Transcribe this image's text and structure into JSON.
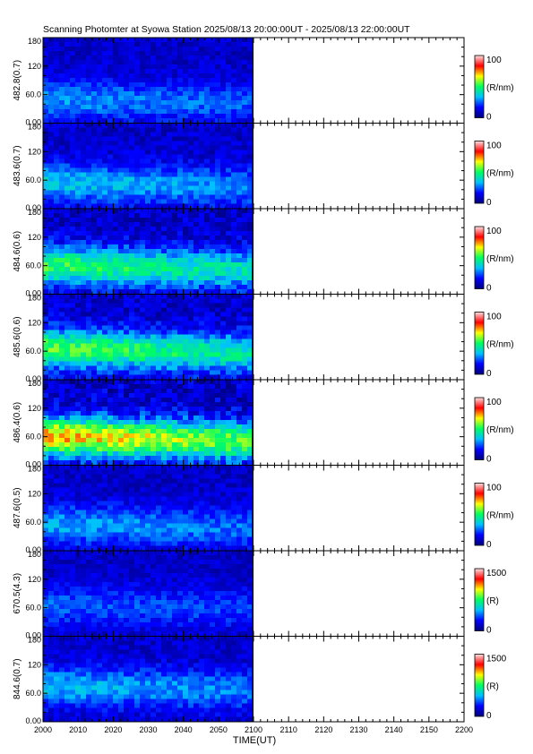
{
  "chart_data": {
    "type": "heatmap",
    "title": "Scanning Photomter at Syowa Station 2025/08/13 20:00:00UT - 2025/08/13 22:00:00UT",
    "xlabel": "TIME(UT)",
    "x_ticks": [
      "2000",
      "2010",
      "2020",
      "2030",
      "2040",
      "2050",
      "2100",
      "2110",
      "2120",
      "2130",
      "2140",
      "2150",
      "2200"
    ],
    "xlim": [
      "2000",
      "2200"
    ],
    "data_end": "2100",
    "ylim": [
      0,
      180
    ],
    "y_ticks": [
      "0.00",
      "60.0",
      "120",
      "180"
    ],
    "colormap": [
      "#00007a",
      "#0000ff",
      "#00c0ff",
      "#00ff60",
      "#ffff00",
      "#ff0000",
      "#ffe0e0"
    ],
    "panels": [
      {
        "ylabel": "482.8(0.7)",
        "unit": "(R/nm)",
        "cb_min": "0",
        "cb_max": "100",
        "peak_y": 45,
        "intensity": 0.2
      },
      {
        "ylabel": "483.6(0.7)",
        "unit": "(R/nm)",
        "cb_min": "0",
        "cb_max": "100",
        "peak_y": 50,
        "intensity": 0.26
      },
      {
        "ylabel": "484.6(0.6)",
        "unit": "(R/nm)",
        "cb_min": "0",
        "cb_max": "100",
        "peak_y": 55,
        "intensity": 0.42
      },
      {
        "ylabel": "485.6(0.6)",
        "unit": "(R/nm)",
        "cb_min": "0",
        "cb_max": "100",
        "peak_y": 60,
        "intensity": 0.45
      },
      {
        "ylabel": "486.4(0.6)",
        "unit": "(R/nm)",
        "cb_min": "0",
        "cb_max": "100",
        "peak_y": 55,
        "intensity": 0.62
      },
      {
        "ylabel": "487.6(0.5)",
        "unit": "(R/nm)",
        "cb_min": "0",
        "cb_max": "100",
        "peak_y": 50,
        "intensity": 0.22
      },
      {
        "ylabel": "670.5(4.3)",
        "unit": "(R)",
        "cb_min": "0",
        "cb_max": "1500",
        "peak_y": 60,
        "intensity": 0.15
      },
      {
        "ylabel": "844.6(0.7)",
        "unit": "(R)",
        "cb_min": "0",
        "cb_max": "1500",
        "peak_y": 70,
        "intensity": 0.24
      }
    ]
  }
}
